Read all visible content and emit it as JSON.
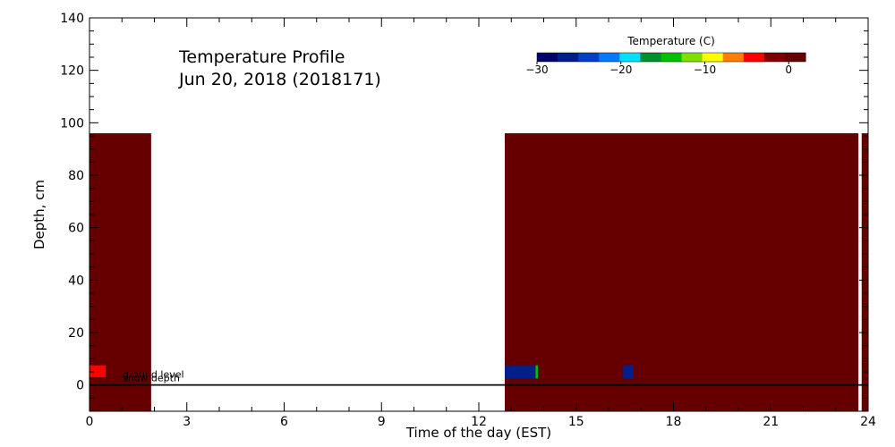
{
  "chart_data": {
    "type": "heatmap",
    "title": "Temperature Profile",
    "subtitle": "Jun 20, 2018 (2018171)",
    "xlabel": "Time of the day (EST)",
    "ylabel": "Depth, cm",
    "xlim": [
      0,
      24
    ],
    "ylim": [
      -10,
      140
    ],
    "xticks": [
      0,
      3,
      6,
      9,
      12,
      15,
      18,
      21,
      24
    ],
    "yticks": [
      0,
      20,
      40,
      60,
      80,
      100,
      120,
      140
    ],
    "colorbar": {
      "title": "Temperature (C)",
      "range": [
        -30,
        2
      ],
      "ticks": [
        -30,
        -20,
        -10,
        0
      ],
      "tick_labels": [
        "−30",
        "−20",
        "−10",
        "0"
      ],
      "colors": [
        "#00006e",
        "#001f8a",
        "#0040c8",
        "#0078ff",
        "#00e0ff",
        "#009030",
        "#00c000",
        "#80e000",
        "#ffff00",
        "#ff8000",
        "#ff0000",
        "#800000",
        "#660000"
      ]
    },
    "cells": [
      {
        "x0": 0.0,
        "x1": 1.9,
        "y0": -10,
        "y1": 96,
        "color": "#660000"
      },
      {
        "x0": 0.0,
        "x1": 0.5,
        "y0": 3,
        "y1": 7.5,
        "color": "#ff0000"
      },
      {
        "x0": 12.8,
        "x1": 23.7,
        "y0": -10,
        "y1": 96,
        "color": "#660000"
      },
      {
        "x0": 23.8,
        "x1": 24.0,
        "y0": -10,
        "y1": 96,
        "color": "#660000"
      },
      {
        "x0": 12.8,
        "x1": 13.75,
        "y0": 2.5,
        "y1": 7.5,
        "color": "#001f8a"
      },
      {
        "x0": 13.75,
        "x1": 13.82,
        "y0": 2.5,
        "y1": 7.5,
        "color": "#00c000"
      },
      {
        "x0": 16.45,
        "x1": 16.75,
        "y0": 2.5,
        "y1": 7.5,
        "color": "#001f8a"
      }
    ],
    "reference_lines": [
      {
        "label": "ground level",
        "y": 0
      },
      {
        "label": "snow depth",
        "y": 0
      }
    ]
  }
}
